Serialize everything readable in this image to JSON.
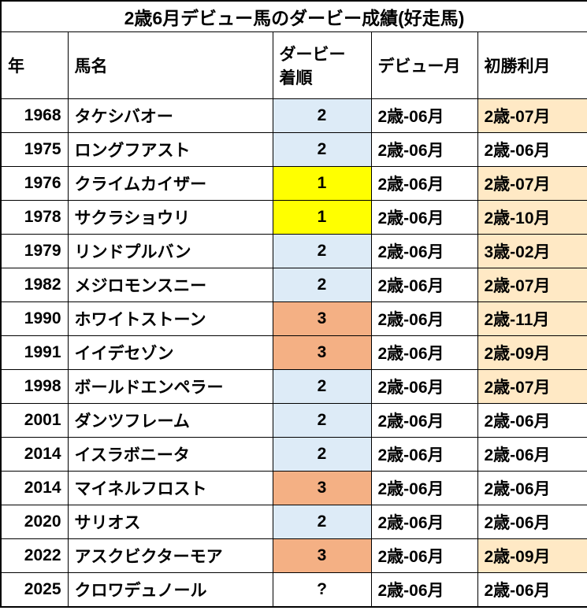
{
  "title": "2歳6月デビュー馬のダービー成績(好走馬)",
  "headers": {
    "year": "年",
    "horse": "馬名",
    "finish": "ダービー\n着順",
    "debut": "デビュー月",
    "first_win": "初勝利月"
  },
  "colors": {
    "finish_1_bg": "#FFFF00",
    "finish_2_bg": "#DDEBF7",
    "finish_3_bg": "#F4B084",
    "first_win_highlight_bg": "#FFE9C5",
    "border": "#000000",
    "text": "#000000",
    "background": "#FFFFFF"
  },
  "chart_data": {
    "type": "table",
    "title": "2歳6月デビュー馬のダービー成績(好走馬)",
    "columns": [
      "年",
      "馬名",
      "ダービー着順",
      "デビュー月",
      "初勝利月"
    ],
    "rows": [
      {
        "year": "1968",
        "horse": "タケシバオー",
        "finish": "2",
        "debut": "2歳-06月",
        "first_win": "2歳-07月",
        "first_win_highlighted": true
      },
      {
        "year": "1975",
        "horse": "ロングフアスト",
        "finish": "2",
        "debut": "2歳-06月",
        "first_win": "2歳-06月",
        "first_win_highlighted": false
      },
      {
        "year": "1976",
        "horse": "クライムカイザー",
        "finish": "1",
        "debut": "2歳-06月",
        "first_win": "2歳-07月",
        "first_win_highlighted": true
      },
      {
        "year": "1978",
        "horse": "サクラショウリ",
        "finish": "1",
        "debut": "2歳-06月",
        "first_win": "2歳-10月",
        "first_win_highlighted": true
      },
      {
        "year": "1979",
        "horse": "リンドプルバン",
        "finish": "2",
        "debut": "2歳-06月",
        "first_win": "3歳-02月",
        "first_win_highlighted": true
      },
      {
        "year": "1982",
        "horse": "メジロモンスニー",
        "finish": "2",
        "debut": "2歳-06月",
        "first_win": "2歳-07月",
        "first_win_highlighted": true
      },
      {
        "year": "1990",
        "horse": "ホワイトストーン",
        "finish": "3",
        "debut": "2歳-06月",
        "first_win": "2歳-11月",
        "first_win_highlighted": true
      },
      {
        "year": "1991",
        "horse": "イイデセゾン",
        "finish": "3",
        "debut": "2歳-06月",
        "first_win": "2歳-09月",
        "first_win_highlighted": true
      },
      {
        "year": "1998",
        "horse": "ボールドエンペラー",
        "finish": "2",
        "debut": "2歳-06月",
        "first_win": "2歳-07月",
        "first_win_highlighted": true
      },
      {
        "year": "2001",
        "horse": "ダンツフレーム",
        "finish": "2",
        "debut": "2歳-06月",
        "first_win": "2歳-06月",
        "first_win_highlighted": false
      },
      {
        "year": "2014",
        "horse": "イスラボニータ",
        "finish": "2",
        "debut": "2歳-06月",
        "first_win": "2歳-06月",
        "first_win_highlighted": false
      },
      {
        "year": "2014",
        "horse": "マイネルフロスト",
        "finish": "3",
        "debut": "2歳-06月",
        "first_win": "2歳-06月",
        "first_win_highlighted": false
      },
      {
        "year": "2020",
        "horse": "サリオス",
        "finish": "2",
        "debut": "2歳-06月",
        "first_win": "2歳-06月",
        "first_win_highlighted": false
      },
      {
        "year": "2022",
        "horse": "アスクビクターモア",
        "finish": "3",
        "debut": "2歳-06月",
        "first_win": "2歳-09月",
        "first_win_highlighted": true
      },
      {
        "year": "2025",
        "horse": "クロワデュノール",
        "finish": "?",
        "debut": "2歳-06月",
        "first_win": "2歳-06月",
        "first_win_highlighted": false
      }
    ]
  }
}
